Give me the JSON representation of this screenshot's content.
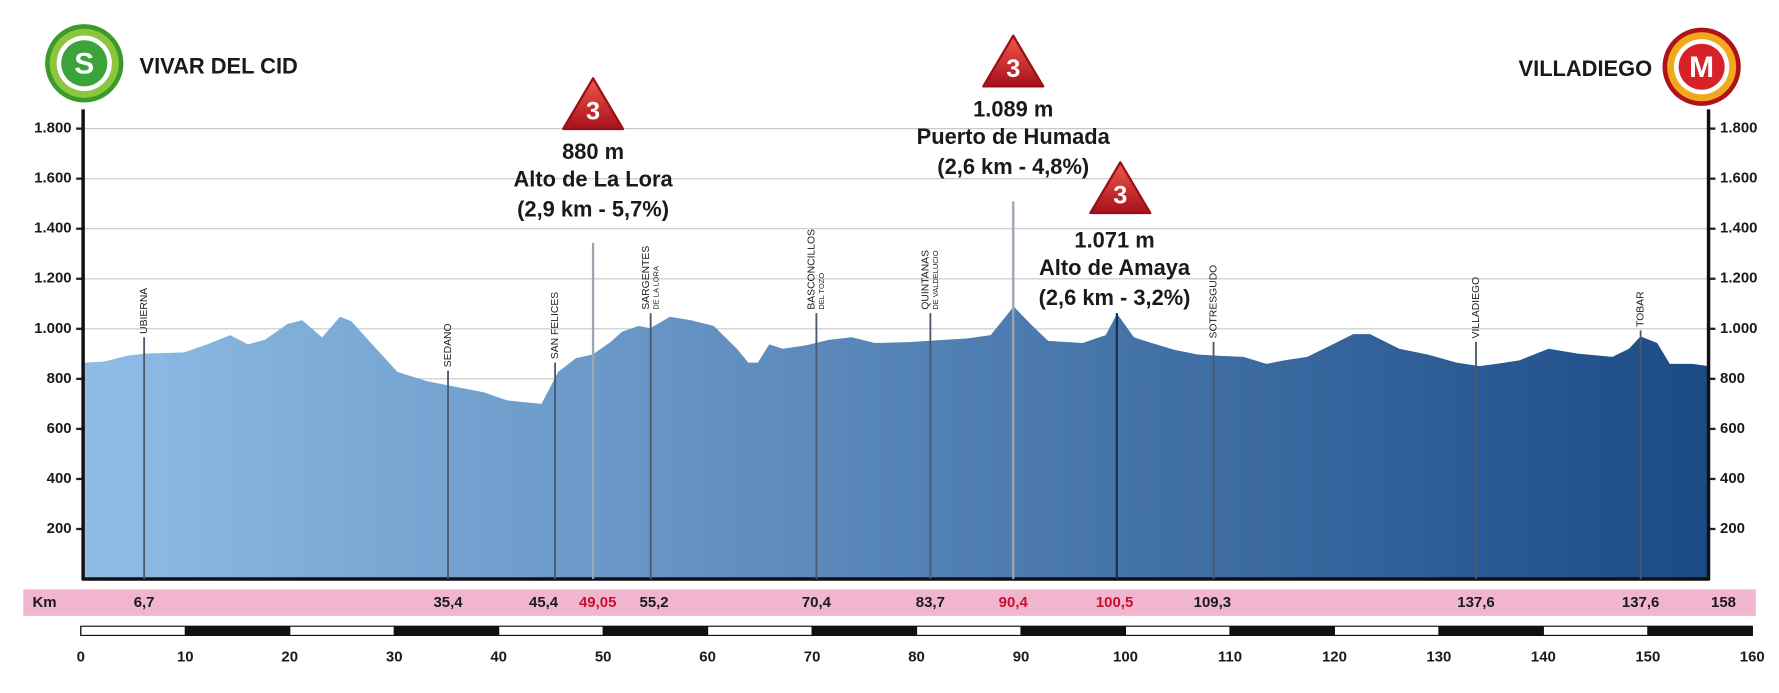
{
  "start": {
    "badge": "S",
    "name": "VIVAR DEL CID"
  },
  "finish": {
    "badge": "M",
    "name": "VILLADIEGO"
  },
  "chart_data": {
    "type": "area",
    "x": [
      0.2,
      2.2,
      4.4,
      6.1,
      9.9,
      12.1,
      14.3,
      16.0,
      17.6,
      19.8,
      21.2,
      23.1,
      24.8,
      25.9,
      27.5,
      30.3,
      33.1,
      35.3,
      38.6,
      40.8,
      44.1,
      45.7,
      47.4,
      49.0,
      50.7,
      51.8,
      53.4,
      54.5,
      56.4,
      58.4,
      60.6,
      62.8,
      63.9,
      64.8,
      65.9,
      67.2,
      69.4,
      71.6,
      73.8,
      76.0,
      79.3,
      82.6,
      84.8,
      87.1,
      89.3,
      90.9,
      92.6,
      95.9,
      98.1,
      99.2,
      100.8,
      102.5,
      104.7,
      106.9,
      109.1,
      111.3,
      113.5,
      115.2,
      117.4,
      120.1,
      121.8,
      123.4,
      126.2,
      128.9,
      131.7,
      133.9,
      135.5,
      137.7,
      140.5,
      143.3,
      146.6,
      148.2,
      149.3,
      150.9,
      152.1,
      154.3,
      155.8
    ],
    "values": [
      865,
      869,
      892,
      901,
      906,
      938,
      975,
      938,
      956,
      1020,
      1034,
      965,
      1048,
      1030,
      956,
      828,
      791,
      773,
      746,
      714,
      700,
      828,
      883,
      897,
      947,
      988,
      1011,
      1002,
      1048,
      1034,
      1011,
      920,
      865,
      865,
      938,
      920,
      934,
      956,
      966,
      943,
      947,
      956,
      961,
      975,
      1089,
      1020,
      952,
      943,
      975,
      1060,
      966,
      943,
      916,
      897,
      892,
      888,
      860,
      874,
      888,
      943,
      979,
      979,
      920,
      897,
      865,
      851,
      860,
      874,
      920,
      901,
      888,
      920,
      970,
      943,
      860,
      860,
      851
    ],
    "color_start": "#8fbde6",
    "color_end": "#1b4a86",
    "xlim": [
      0,
      160
    ],
    "xticks": [
      0,
      10,
      20,
      30,
      40,
      50,
      60,
      70,
      80,
      90,
      100,
      110,
      120,
      130,
      140,
      150,
      160
    ],
    "ylim": [
      0,
      1900
    ],
    "yticks": [
      {
        "value": 200,
        "label": "200"
      },
      {
        "value": 400,
        "label": "400"
      },
      {
        "value": 600,
        "label": "600"
      },
      {
        "value": 800,
        "label": "800"
      },
      {
        "value": 1000,
        "label": "1.000"
      },
      {
        "value": 1200,
        "label": "1.200"
      },
      {
        "value": 1400,
        "label": "1.400"
      },
      {
        "value": 1600,
        "label": "1.600"
      },
      {
        "value": 1800,
        "label": "1.800"
      }
    ],
    "grid": true,
    "waypoints": [
      {
        "name": "UBIERNA"
      },
      {
        "name": "SEDANO"
      },
      {
        "name": "SAN FELICES"
      },
      {
        "name": "SARGENTES",
        "sub": "DE LA LORA"
      },
      {
        "name": "BASCONCILLOS",
        "sub": "DEL TOZO"
      },
      {
        "name": "QUINTANAS",
        "sub": "DE VALDELUCIO"
      },
      {
        "name": "SOTRESGUDO"
      },
      {
        "name": "VILLADIEGO"
      },
      {
        "name": "TOBAR"
      }
    ],
    "climbs": [
      {
        "category": "3",
        "elevation": "880 m",
        "name": "Alto de La Lora",
        "detail": "(2,9 km - 5,7%)"
      },
      {
        "category": "3",
        "elevation": "1.089 m",
        "name": "Puerto de Humada",
        "detail": "(2,6 km - 4,8%)"
      },
      {
        "category": "3",
        "elevation": "1.071 m",
        "name": "Alto de Amaya",
        "detail": "(2,6 km - 3,2%)"
      }
    ],
    "km_row": {
      "title": "Km",
      "items": [
        {
          "label": "6,7"
        },
        {
          "label": "35,4"
        },
        {
          "label": "45,4"
        },
        {
          "label": "49,05",
          "highlight": true
        },
        {
          "label": "55,2"
        },
        {
          "label": "70,4"
        },
        {
          "label": "83,7"
        },
        {
          "label": "90,4",
          "highlight": true
        },
        {
          "label": "100,5",
          "highlight": true
        },
        {
          "label": "109,3"
        },
        {
          "label": "137,6"
        },
        {
          "label": "137,6"
        },
        {
          "label": "158"
        }
      ]
    }
  }
}
